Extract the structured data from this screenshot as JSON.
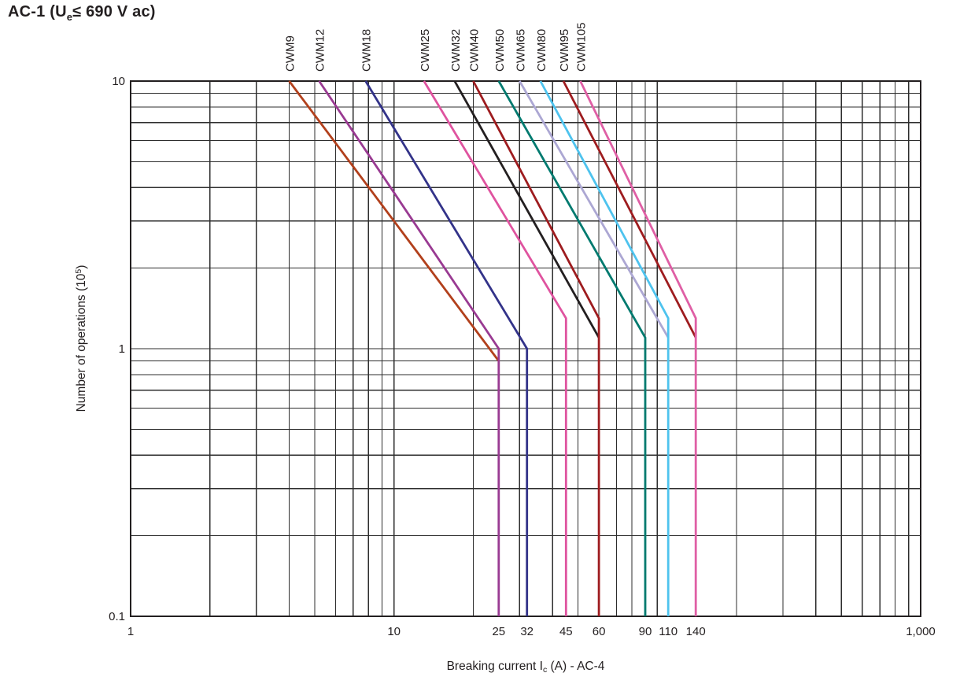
{
  "page": {
    "title_parts": {
      "pre": "AC-1 (U",
      "sub": "e",
      "post": "≤ 690 V ac)"
    },
    "title_text": "AC-1 (Ue ≤ 690 V ac)"
  },
  "colors": {
    "background": "#ffffff",
    "grid": "#2d2d2d",
    "border": "#231f20",
    "text": "#231f20"
  },
  "chart_data": {
    "type": "line",
    "title": "AC-1 (Ue ≤ 690 V ac)",
    "xlabel": "Breaking current Ic (A) - AC-4",
    "xlabel_parts": {
      "pre": "Breaking current I",
      "sub": "c",
      "post": " (A) - AC-4"
    },
    "ylabel": "Number of operations (10^5)",
    "ylabel_parts": {
      "pre": "Number of operations (10",
      "sup": "5",
      "post": ")"
    },
    "xscale": "log",
    "yscale": "log",
    "xlim": [
      1,
      1000
    ],
    "ylim": [
      0.1,
      10
    ],
    "grid": "log minor gridlines on both axes",
    "legend_position": "rotated labels above top axis at each curve start",
    "x_ticks": [
      {
        "value": 1,
        "label": "1"
      },
      {
        "value": 10,
        "label": "10"
      },
      {
        "value": 25,
        "label": "25"
      },
      {
        "value": 32,
        "label": "32"
      },
      {
        "value": 45,
        "label": "45"
      },
      {
        "value": 60,
        "label": "60"
      },
      {
        "value": 90,
        "label": "90"
      },
      {
        "value": 110,
        "label": "110"
      },
      {
        "value": 140,
        "label": "140"
      },
      {
        "value": 1000,
        "label": "1,000"
      }
    ],
    "y_ticks": [
      {
        "value": 10,
        "label": "10"
      },
      {
        "value": 1,
        "label": "1"
      },
      {
        "value": 0.1,
        "label": "0.1"
      }
    ],
    "series": [
      {
        "label": "CWM9",
        "color": "#b2401c",
        "points": [
          [
            4.0,
            10
          ],
          [
            25,
            0.9
          ]
        ]
      },
      {
        "label": "CWM12",
        "color": "#993a92",
        "points": [
          [
            5.2,
            10
          ],
          [
            25,
            1.0
          ],
          [
            25,
            0.1
          ]
        ]
      },
      {
        "label": "CWM18",
        "color": "#333389",
        "points": [
          [
            7.8,
            10
          ],
          [
            32,
            1.0
          ],
          [
            32,
            0.1
          ]
        ]
      },
      {
        "label": "CWM25",
        "color": "#df539f",
        "points": [
          [
            13,
            10
          ],
          [
            45,
            1.3
          ],
          [
            45,
            0.1
          ]
        ]
      },
      {
        "label": "CWM32",
        "color": "#231f20",
        "points": [
          [
            17,
            10
          ],
          [
            60,
            1.1
          ]
        ]
      },
      {
        "label": "CWM40",
        "color": "#9e1c1f",
        "points": [
          [
            20,
            10
          ],
          [
            60,
            1.3
          ],
          [
            60,
            0.1
          ]
        ]
      },
      {
        "label": "CWM50",
        "color": "#007a6f",
        "points": [
          [
            25,
            10
          ],
          [
            90,
            1.1
          ],
          [
            90,
            0.1
          ]
        ]
      },
      {
        "label": "CWM65",
        "color": "#aca7d3",
        "points": [
          [
            30,
            10
          ],
          [
            110,
            1.1
          ]
        ]
      },
      {
        "label": "CWM80",
        "color": "#4ec3ee",
        "points": [
          [
            36,
            10
          ],
          [
            110,
            1.3
          ],
          [
            110,
            0.1
          ]
        ]
      },
      {
        "label": "CWM95",
        "color": "#9e1c1f",
        "points": [
          [
            44,
            10
          ],
          [
            140,
            1.1
          ]
        ]
      },
      {
        "label": "CWM105",
        "color": "#df5fa5",
        "points": [
          [
            51,
            10
          ],
          [
            140,
            1.3
          ],
          [
            140,
            0.1
          ]
        ]
      }
    ]
  }
}
